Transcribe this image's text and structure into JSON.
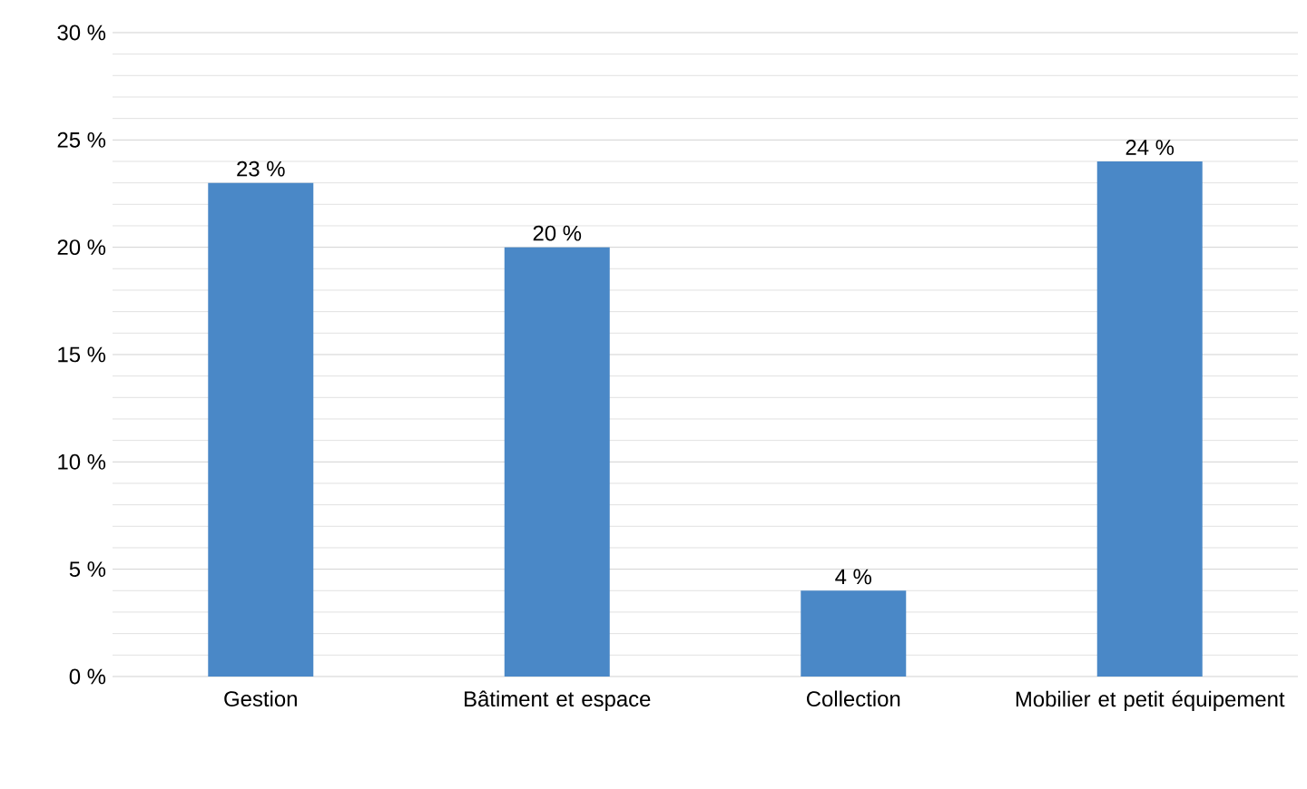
{
  "chart_data": {
    "type": "bar",
    "categories": [
      "Gestion",
      "Bâtiment et espace",
      "Collection",
      "Mobilier et petit équipement"
    ],
    "values": [
      23,
      20,
      4,
      24
    ],
    "value_labels": [
      "23 %",
      "20 %",
      "4 %",
      "24 %"
    ],
    "color": "#4a88c7",
    "ylim": [
      0,
      30
    ],
    "yticks": [
      {
        "value": 0,
        "label": "0 %"
      },
      {
        "value": 5,
        "label": "5 %"
      },
      {
        "value": 10,
        "label": "10 %"
      },
      {
        "value": 15,
        "label": "15 %"
      },
      {
        "value": 20,
        "label": "20 %"
      },
      {
        "value": 25,
        "label": "25 %"
      },
      {
        "value": 30,
        "label": "30 %"
      }
    ],
    "grid": true
  }
}
